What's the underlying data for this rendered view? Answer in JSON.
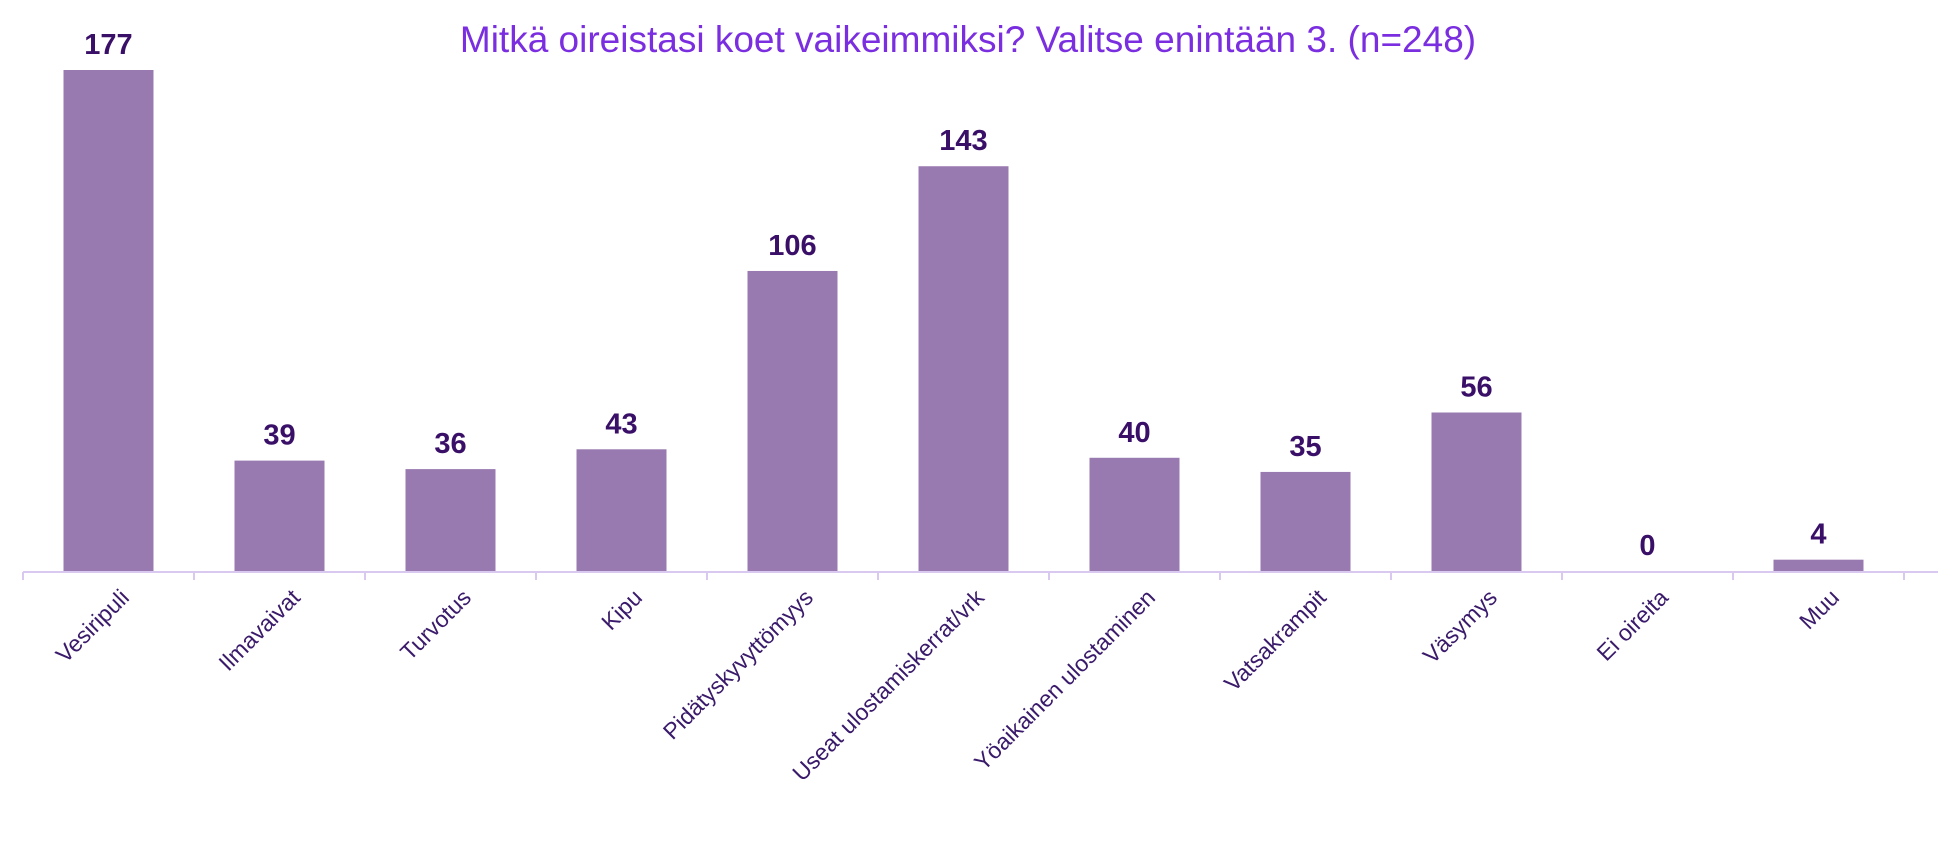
{
  "chart_data": {
    "type": "bar",
    "title": "Mitkä oireistasi koet vaikeimmiksi? Valitse enintään 3. (n=248)",
    "categories": [
      "Vesiripuli",
      "Ilmavaivat",
      "Turvotus",
      "Kipu",
      "Pidätyskyvyttömyys",
      "Useat ulostamiskerrat/vrk",
      "Yöaikainen ulostaminen",
      "Vatsakrampit",
      "Väsymys",
      "Ei oireita",
      "Muu"
    ],
    "values": [
      177,
      39,
      36,
      43,
      106,
      143,
      40,
      35,
      56,
      0,
      4
    ],
    "xlabel": "",
    "ylabel": "",
    "ylim": [
      0,
      177
    ],
    "grid": false,
    "legend": "none",
    "colors": {
      "bar": "#997ab0",
      "axis": "#d9c8f0",
      "title": "#7a2ee0",
      "label": "#3a0f68"
    }
  }
}
